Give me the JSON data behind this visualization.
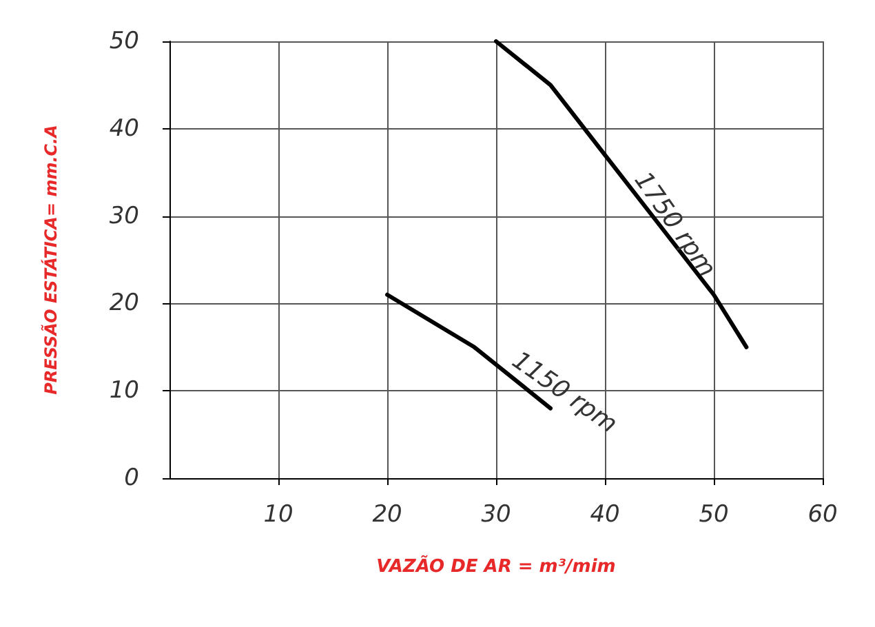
{
  "chart_data": {
    "type": "line",
    "xlabel": "VAZÃO DE AR = m³/mim",
    "ylabel": "PRESSÃO ESTÁTICA= mm.C.A",
    "xlim": [
      0,
      60
    ],
    "xticks": [
      10,
      20,
      30,
      40,
      50,
      60
    ],
    "ylim": [
      0,
      50
    ],
    "yticks": [
      0,
      10,
      20,
      30,
      40,
      50
    ],
    "grid": true,
    "legend": false,
    "marker": "none",
    "line_style": "solid",
    "series": [
      {
        "name": "1750 rpm",
        "color": "#000000",
        "x": [
          30,
          35,
          40,
          45,
          50,
          53
        ],
        "values": [
          50,
          45,
          37,
          29,
          21,
          15
        ]
      },
      {
        "name": "1150 rpm",
        "color": "#000000",
        "x": [
          20,
          28,
          35
        ],
        "values": [
          21,
          15,
          8
        ]
      }
    ]
  }
}
